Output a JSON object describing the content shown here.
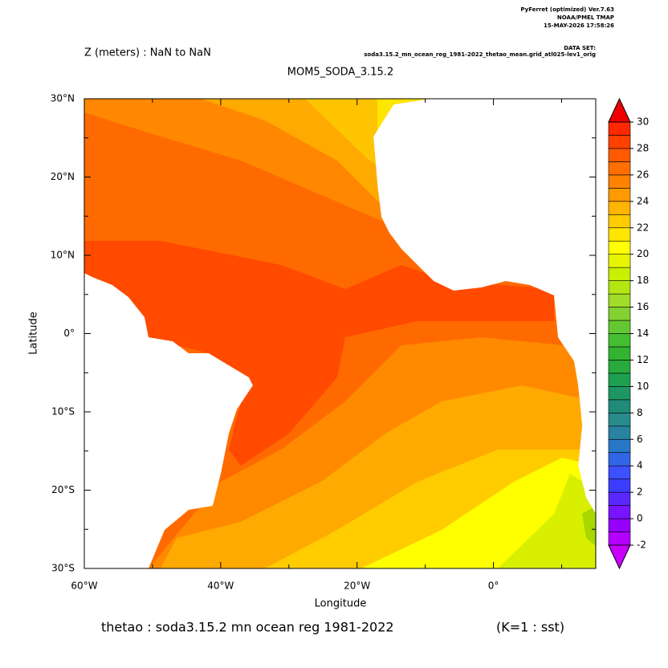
{
  "header": {
    "software": "PyFerret (optimized) Ver.7.63",
    "lab": "NOAA/PMEL TMAP",
    "timestamp": "15-MAY-2026 17:58:26",
    "dataset_label": "DATA SET:",
    "dataset": "soda3.15.2_mn_ocean_reg_1981-2022_thetao_mean.grid_atl025-lev1_orig",
    "depth": "Z (meters) : NaN to NaN",
    "title": "MOM5_SODA_3.15.2"
  },
  "map": {
    "xlabel": "Longitude",
    "ylabel": "Latitude",
    "xlim": [
      -60,
      15
    ],
    "ylim": [
      -30,
      30
    ],
    "xticks": [
      {
        "value": -60,
        "label": "60°W"
      },
      {
        "value": -40,
        "label": "40°W"
      },
      {
        "value": -20,
        "label": "20°W"
      },
      {
        "value": 0,
        "label": "0°"
      }
    ],
    "yticks": [
      {
        "value": -30,
        "label": "30°S"
      },
      {
        "value": -20,
        "label": "20°S"
      },
      {
        "value": -10,
        "label": "10°S"
      },
      {
        "value": 0,
        "label": "0°"
      },
      {
        "value": 10,
        "label": "10°N"
      },
      {
        "value": 20,
        "label": "20°N"
      },
      {
        "value": 30,
        "label": "30°N"
      }
    ]
  },
  "colorbar": {
    "clim": [
      -2,
      30
    ],
    "ticks": [
      -2,
      0,
      2,
      4,
      6,
      8,
      10,
      12,
      14,
      16,
      18,
      20,
      22,
      24,
      26,
      28,
      30
    ],
    "under_color": "#c800ff",
    "over_color": "#ee0000",
    "colors": [
      "#b400ff",
      "#9600ff",
      "#7814ff",
      "#5a28ff",
      "#3c3cff",
      "#3c50ff",
      "#3264e6",
      "#2878c8",
      "#2882a0",
      "#288c8c",
      "#1e8c78",
      "#1e9664",
      "#1ea050",
      "#28aa3c",
      "#32b432",
      "#46be32",
      "#64c832",
      "#82d232",
      "#a0dc28",
      "#b4e614",
      "#c8f000",
      "#e6f500",
      "#ffff00",
      "#ffe600",
      "#ffcc00",
      "#ffb400",
      "#ff9900",
      "#ff8200",
      "#ff6e00",
      "#ff5a00",
      "#ff4000",
      "#ff2800"
    ]
  },
  "footer": {
    "variable": "thetao : soda3.15.2 mn ocean reg 1981-2022",
    "level": "(K=1 : sst)"
  }
}
